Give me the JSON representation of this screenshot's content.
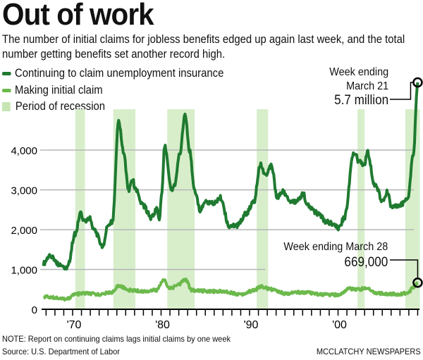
{
  "chart_data": {
    "type": "line",
    "title": "Out of work",
    "subtitle": "The number of initial claims for jobless benefits edged up again last week, and the total number getting benefits set another record high.",
    "ylabel": "",
    "xlabel": "",
    "ylim": [
      0,
      6000
    ],
    "xlim": [
      1966.6,
      2009.3
    ],
    "yticks": [
      {
        "v": 0,
        "label": "0"
      },
      {
        "v": 1000,
        "label": "1,000"
      },
      {
        "v": 2000,
        "label": "2,000"
      },
      {
        "v": 3000,
        "label": "3,000"
      },
      {
        "v": 4000,
        "label": "4,000"
      }
    ],
    "xticks": [
      {
        "v": 1970,
        "label": "'70"
      },
      {
        "v": 1980,
        "label": "'80"
      },
      {
        "v": 1990,
        "label": "'90"
      },
      {
        "v": 2000,
        "label": "'00"
      }
    ],
    "units": "thousands",
    "legend": {
      "continuing": "Continuing to claim unemployment insurance",
      "initial": "Making initial claim",
      "recession": "Period of recession"
    },
    "colors": {
      "continuing": "#1f7a30",
      "initial": "#6cb94c",
      "recession": "#d8eecb",
      "grid": "#b5b5b5"
    },
    "recessions": [
      [
        1970.3,
        1971.4
      ],
      [
        1974.6,
        1977.1
      ],
      [
        1980.7,
        1983.8
      ],
      [
        1990.8,
        1992.1
      ],
      [
        2002.2,
        2003.0
      ],
      [
        2007.6,
        2009.25
      ]
    ],
    "series": [
      {
        "name": "Continuing to claim unemployment insurance",
        "key": "continuing",
        "x": [
          1966.7,
          1967.4,
          1968.3,
          1969.4,
          1970.3,
          1970.9,
          1971.3,
          1971.9,
          1972.4,
          1973.4,
          1974.0,
          1974.5,
          1975.2,
          1975.8,
          1976.3,
          1976.8,
          1977.1,
          1978.0,
          1978.9,
          1979.5,
          1979.8,
          1980.1,
          1980.4,
          1981.2,
          1981.5,
          1982.1,
          1982.7,
          1983.2,
          1983.8,
          1984.4,
          1985.0,
          1985.9,
          1986.7,
          1987.7,
          1988.6,
          1989.6,
          1990.5,
          1991.2,
          1991.8,
          1992.5,
          1993.1,
          1993.7,
          1994.7,
          1995.3,
          1996.1,
          1996.5,
          1997.8,
          1998.7,
          2000.1,
          2000.7,
          2001.8,
          2002.4,
          2003.0,
          2003.3,
          2004.2,
          2005.1,
          2005.6,
          2006.0,
          2007.3,
          2007.9,
          2008.5,
          2009.0
        ],
        "values": [
          1150,
          1350,
          1150,
          1050,
          1900,
          2400,
          2200,
          2300,
          2000,
          1600,
          2100,
          2200,
          4700,
          3900,
          3000,
          3250,
          3000,
          2600,
          2300,
          2500,
          2300,
          3000,
          4100,
          3000,
          3100,
          3900,
          4900,
          4000,
          3000,
          2500,
          2700,
          2650,
          2800,
          2100,
          2100,
          2400,
          2700,
          3650,
          3400,
          3600,
          2800,
          2950,
          2700,
          2700,
          2900,
          2600,
          2400,
          2200,
          2050,
          2300,
          3950,
          3700,
          3600,
          3950,
          3100,
          2700,
          2950,
          2550,
          2650,
          2800,
          3900,
          5700
        ]
      },
      {
        "name": "Making initial claim",
        "key": "initial",
        "x": [
          1966.7,
          1968.0,
          1969.3,
          1970.3,
          1971.5,
          1973.0,
          1974.5,
          1975.2,
          1976.5,
          1978.0,
          1979.5,
          1980.3,
          1981.0,
          1982.0,
          1982.7,
          1983.5,
          1984.5,
          1987.0,
          1989.0,
          1990.5,
          1991.2,
          1992.5,
          1994.0,
          1996.0,
          1998.0,
          2000.0,
          2001.3,
          2002.0,
          2003.3,
          2004.5,
          2006.5,
          2007.8,
          2008.6,
          2009.0
        ],
        "values": [
          320,
          290,
          260,
          380,
          400,
          370,
          430,
          580,
          480,
          450,
          480,
          740,
          520,
          620,
          750,
          480,
          460,
          450,
          380,
          470,
          570,
          500,
          400,
          430,
          370,
          360,
          520,
          500,
          520,
          400,
          380,
          400,
          560,
          669
        ]
      }
    ],
    "annotations": [
      {
        "series": "continuing",
        "line1": "Week ending",
        "line2": "March 21",
        "value_label": "5.7 million"
      },
      {
        "series": "initial",
        "line1": "Week ending March 28",
        "value_label": "669,000"
      }
    ],
    "note": "NOTE: Report on continuing claims lags initial claims by one week",
    "source": "Source: U.S. Department of Labor",
    "credit": "MCCLATCHY NEWSPAPERS"
  }
}
